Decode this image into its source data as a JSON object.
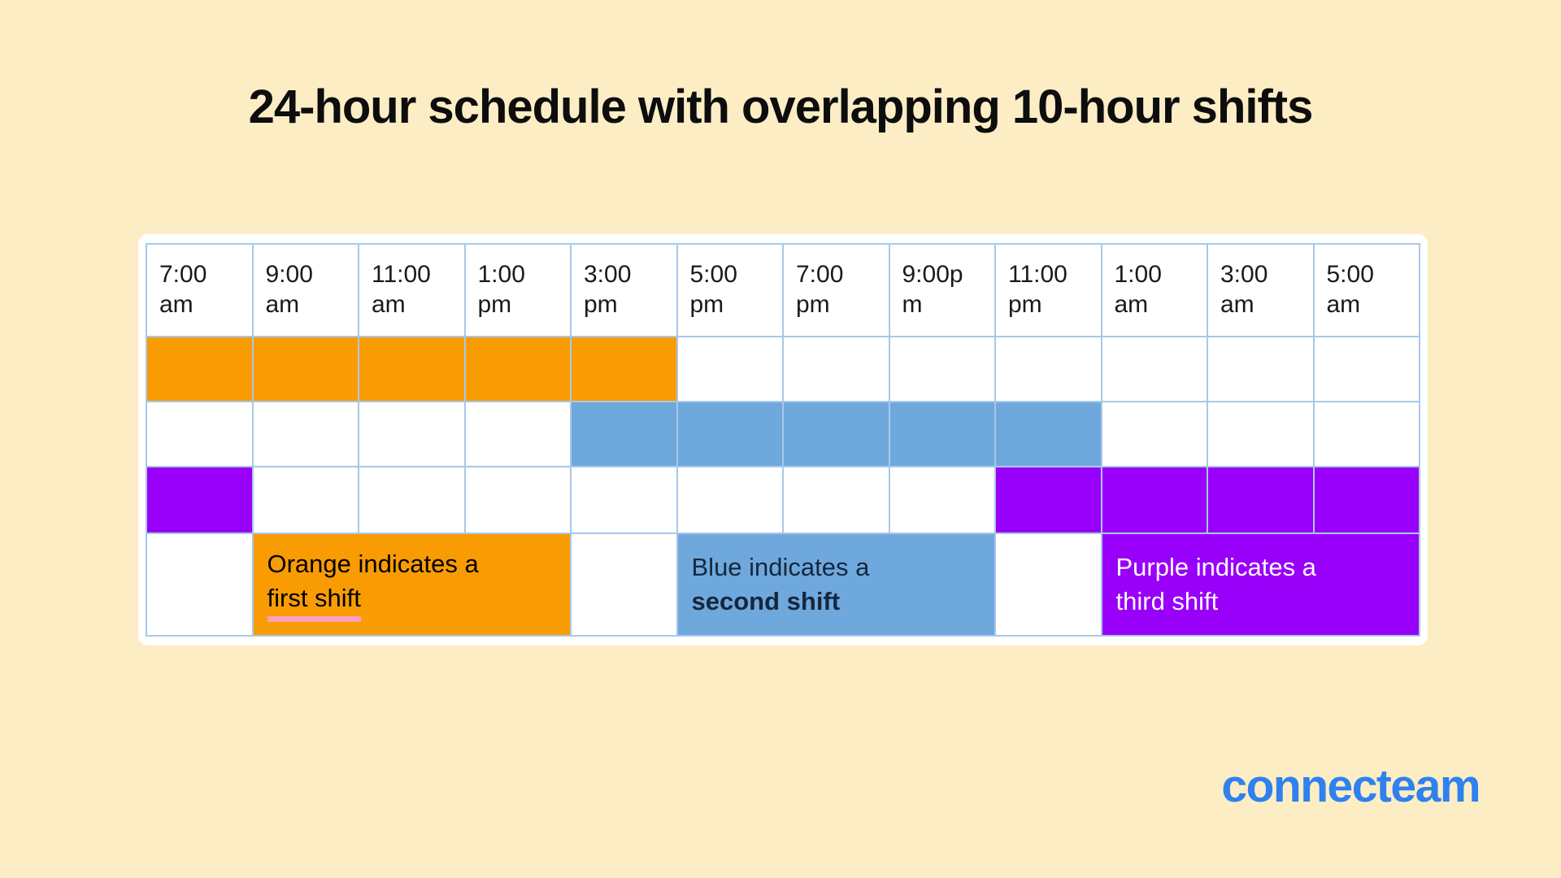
{
  "title": "24-hour schedule with overlapping 10-hour shifts",
  "brand": {
    "logo_text": "connecteam",
    "logo_color": "#2E81EE"
  },
  "colors": {
    "page_background": "#FCEDC5",
    "card_background": "#FFFFFF",
    "grid_line": "#A8C8EA",
    "orange": "#F99C04",
    "blue": "#6FA8DC",
    "purple": "#9900FA",
    "pink_underline": "#FF9FC0",
    "title_text": "#0D0D0D"
  },
  "chart_data": {
    "type": "table",
    "subtype": "gantt-schedule",
    "title": "24-hour schedule with overlapping 10-hour shifts",
    "columns": [
      "7:00 am",
      "9:00 am",
      "11:00 am",
      "1:00 pm",
      "3:00 pm",
      "5:00 pm",
      "7:00 pm",
      "9:00pm",
      "11:00 pm",
      "1:00 am",
      "3:00 am",
      "5:00 am"
    ],
    "hours_per_column": 2,
    "shifts": [
      {
        "name": "first shift",
        "color_label": "Orange",
        "hex": "#F99C04",
        "start": "7:00 am",
        "end": "5:00 pm",
        "duration_hours": 10,
        "filled_columns": [
          1,
          2,
          3,
          4,
          5
        ]
      },
      {
        "name": "second shift",
        "color_label": "Blue",
        "hex": "#6FA8DC",
        "start": "3:00 pm",
        "end": "1:00 am",
        "duration_hours": 10,
        "filled_columns": [
          5,
          6,
          7,
          8,
          9
        ]
      },
      {
        "name": "third shift",
        "color_label": "Purple",
        "hex": "#9900FA",
        "start": "11:00 pm",
        "end": "9:00 am",
        "duration_hours": 10,
        "filled_columns": [
          1,
          9,
          10,
          11,
          12
        ]
      }
    ],
    "legend_cells": [
      {
        "columns": [
          1,
          1
        ],
        "background": "#FFFFFF"
      },
      {
        "columns": [
          2,
          4
        ],
        "background": "#F99C04",
        "lines": [
          "Orange indicates a",
          "first shift"
        ],
        "text_color": "#000000",
        "line2_underline": "#FF9FC0"
      },
      {
        "columns": [
          5,
          5
        ],
        "background": "#FFFFFF"
      },
      {
        "columns": [
          6,
          8
        ],
        "background": "#6FA8DC",
        "lines": [
          "Blue indicates a",
          "second shift"
        ],
        "text_color": "#14273E",
        "line2_bold": true
      },
      {
        "columns": [
          9,
          9
        ],
        "background": "#FFFFFF"
      },
      {
        "columns": [
          10,
          12
        ],
        "background": "#9900FA",
        "lines": [
          "Purple indicates a",
          "third shift"
        ],
        "text_color": "#FFFFFF"
      }
    ],
    "legend_position": "bottom-row",
    "grid": true
  }
}
